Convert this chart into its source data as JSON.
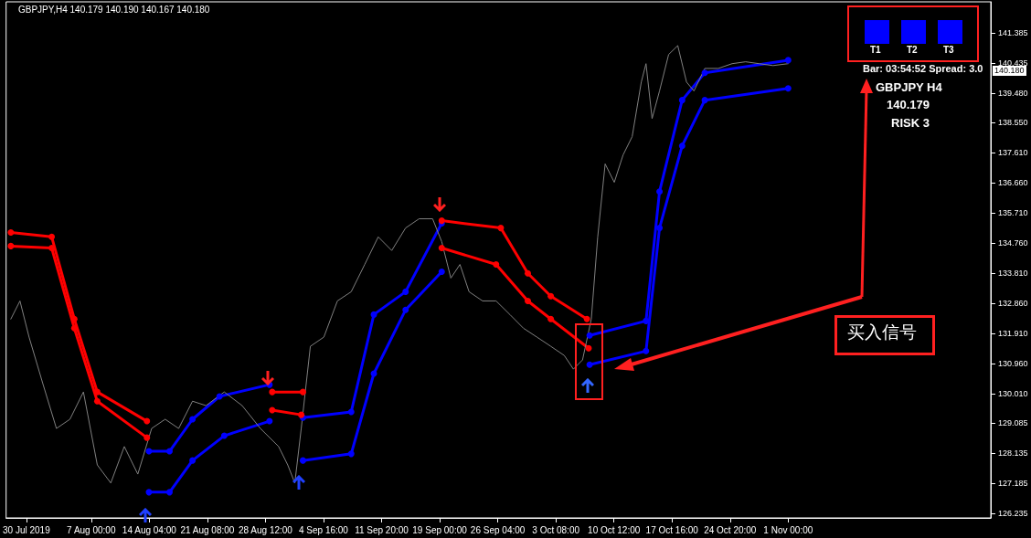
{
  "chart_data": {
    "type": "line",
    "marker": "circle",
    "line_style": "solid",
    "grid": false,
    "annotations": [
      "GBPJPY,H4 140.179 140.190 140.167 140.180",
      "Bar: 03:54:52 Spread: 3.0",
      "GBPJPY H4",
      "140.179",
      "RISK 3",
      "T1",
      "T2",
      "T3",
      "买入信号",
      "140.180"
    ],
    "xlim": [
      "2019-07-27T12:00",
      "2019-11-26T00:00"
    ],
    "xticks": [
      {
        "value": "2019-07-30T00:00",
        "label": "30 Jul 2019"
      },
      {
        "value": "2019-08-07T00:00",
        "label": "7 Aug 00:00"
      },
      {
        "value": "2019-08-14T04:00",
        "label": "14 Aug 04:00"
      },
      {
        "value": "2019-08-21T08:00",
        "label": "21 Aug 08:00"
      },
      {
        "value": "2019-08-28T12:00",
        "label": "28 Aug 12:00"
      },
      {
        "value": "2019-09-04T16:00",
        "label": "4 Sep 16:00"
      },
      {
        "value": "2019-09-11T20:00",
        "label": "11 Sep 20:00"
      },
      {
        "value": "2019-09-19T00:00",
        "label": "19 Sep 00:00"
      },
      {
        "value": "2019-09-26T04:00",
        "label": "26 Sep 04:00"
      },
      {
        "value": "2019-10-03T08:00",
        "label": "3 Oct 08:00"
      },
      {
        "value": "2019-10-10T12:00",
        "label": "10 Oct 12:00"
      },
      {
        "value": "2019-10-17T16:00",
        "label": "17 Oct 16:00"
      },
      {
        "value": "2019-10-24T20:00",
        "label": "24 Oct 20:00"
      },
      {
        "value": "2019-11-01T00:00",
        "label": "1 Nov 00:00"
      }
    ],
    "ylim": [
      126.09,
      142.36
    ],
    "yticks": [
      {
        "value": 126.235,
        "label": "126.235"
      },
      {
        "value": 127.185,
        "label": "127.185"
      },
      {
        "value": 128.135,
        "label": "128.135"
      },
      {
        "value": 129.085,
        "label": "129.085"
      },
      {
        "value": 130.01,
        "label": "130.010"
      },
      {
        "value": 130.96,
        "label": "130.960"
      },
      {
        "value": 131.91,
        "label": "131.910"
      },
      {
        "value": 132.86,
        "label": "132.860"
      },
      {
        "value": 133.81,
        "label": "133.810"
      },
      {
        "value": 134.76,
        "label": "134.760"
      },
      {
        "value": 135.71,
        "label": "135.710"
      },
      {
        "value": 136.66,
        "label": "136.660"
      },
      {
        "value": 137.61,
        "label": "137.610"
      },
      {
        "value": 138.55,
        "label": "138.550"
      },
      {
        "value": 139.48,
        "label": "139.480"
      },
      {
        "value": 140.435,
        "label": "140.435"
      },
      {
        "value": 141.385,
        "label": "141.385"
      }
    ],
    "series": [
      {
        "color": "#808080",
        "marker": "none",
        "x": [
          "2019-07-28T02:00",
          "2019-07-29T05:00",
          "2019-07-30T08:00",
          "2019-08-01T00:00",
          "2019-08-02T17:00",
          "2019-08-04T09:00",
          "2019-08-06T01:00",
          "2019-08-07T18:00",
          "2019-08-09T10:00",
          "2019-08-11T02:00",
          "2019-08-12T18:00",
          "2019-08-14T11:00",
          "2019-08-16T03:00",
          "2019-08-17T19:00",
          "2019-08-19T12:00",
          "2019-08-21T04:00",
          "2019-08-23T10:00",
          "2019-08-25T15:00",
          "2019-08-27T21:00",
          "2019-08-30T03:00",
          "2019-08-31T06:00",
          "2019-09-01T03:00",
          "2019-09-01T22:00",
          "2019-09-03T01:00",
          "2019-09-04T17:00",
          "2019-09-06T09:00",
          "2019-09-08T02:00",
          "2019-09-09T18:00",
          "2019-09-11T10:00",
          "2019-09-13T02:00",
          "2019-09-14T19:00",
          "2019-09-16T11:00",
          "2019-09-18T03:00",
          "2019-09-19T06:00",
          "2019-09-20T09:00",
          "2019-09-21T12:00",
          "2019-09-22T15:00",
          "2019-09-24T07:00",
          "2019-09-25T23:00",
          "2019-09-27T16:00",
          "2019-09-29T08:00",
          "2019-10-01T00:00",
          "2019-10-02T17:00",
          "2019-10-04T09:00",
          "2019-10-05T12:00",
          "2019-10-06T15:00",
          "2019-10-07T17:00",
          "2019-10-08T12:00",
          "2019-10-09T10:00",
          "2019-10-10T13:00",
          "2019-10-11T15:00",
          "2019-10-12T18:00",
          "2019-10-13T21:00",
          "2019-10-14T11:00",
          "2019-10-15T05:00",
          "2019-10-16T03:00",
          "2019-10-17T06:00",
          "2019-10-18T09:00",
          "2019-10-19T11:00",
          "2019-10-20T09:00",
          "2019-10-21T17:00",
          "2019-10-23T09:00",
          "2019-10-25T02:00",
          "2019-10-26T18:00",
          "2019-10-28T10:00",
          "2019-10-30T03:00",
          "2019-11-01T00:00"
        ],
        "values": [
          132.36,
          132.93,
          131.79,
          130.35,
          128.91,
          129.2,
          130.06,
          127.76,
          127.19,
          128.34,
          127.47,
          128.91,
          129.2,
          128.91,
          129.77,
          129.63,
          130.06,
          129.63,
          128.91,
          128.34,
          127.76,
          127.19,
          128.91,
          131.5,
          131.79,
          132.93,
          133.22,
          134.08,
          134.95,
          134.52,
          135.23,
          135.52,
          135.52,
          134.8,
          133.65,
          134.08,
          133.22,
          132.93,
          132.93,
          132.5,
          132.07,
          131.79,
          131.5,
          131.21,
          130.78,
          131.07,
          132.36,
          134.95,
          137.25,
          136.67,
          137.53,
          138.11,
          139.83,
          140.41,
          138.68,
          139.55,
          140.7,
          140.98,
          139.83,
          139.55,
          140.26,
          140.26,
          140.41,
          140.47,
          140.41,
          140.35,
          140.41
        ]
      },
      {
        "color": "#ff0000",
        "x": [
          "2019-07-28T02:00",
          "2019-08-02T03:00",
          "2019-08-04T22:00",
          "2019-08-07T18:00",
          "2019-08-13T21:00",
          "2019-08-20T00:00",
          "2019-08-29T08:00",
          "2019-09-02T03:00",
          "2019-09-10T00:00",
          "2019-09-19T06:00",
          "2019-09-26T13:00",
          "2019-09-29T21:00",
          "2019-10-02T17:00",
          "2019-10-07T04:00"
        ],
        "values": [
          135.09,
          134.95,
          132.36,
          130.06,
          129.14,
          null,
          130.06,
          130.06,
          null,
          135.46,
          135.23,
          133.8,
          133.08,
          132.36
        ]
      },
      {
        "color": "#ff0000",
        "x": [
          "2019-07-28T02:00",
          "2019-08-02T03:00",
          "2019-08-04T22:00",
          "2019-08-07T18:00",
          "2019-08-13T21:00",
          "2019-08-20T00:00",
          "2019-08-29T08:00",
          "2019-09-01T22:00",
          "2019-09-10T00:00",
          "2019-09-19T06:00",
          "2019-09-25T23:00",
          "2019-09-29T21:00",
          "2019-10-02T17:00",
          "2019-10-07T09:00"
        ],
        "values": [
          134.66,
          134.6,
          132.07,
          129.77,
          128.62,
          null,
          129.49,
          129.34,
          null,
          134.6,
          134.08,
          132.93,
          132.36,
          131.44
        ]
      },
      {
        "color": "#0000ff",
        "x": [
          "2019-08-14T03:00",
          "2019-08-16T16:00",
          "2019-08-19T12:00",
          "2019-08-22T20:00",
          "2019-08-29T00:00",
          "2019-08-31T00:00",
          "2019-09-02T03:00",
          "2019-09-08T02:00",
          "2019-09-10T21:00",
          "2019-09-14T19:00",
          "2019-09-19T06:00",
          "2019-10-01T00:00",
          "2019-10-07T12:00",
          "2019-10-14T11:00",
          "2019-10-16T03:00",
          "2019-10-18T22:00",
          "2019-10-21T17:00",
          "2019-11-01T00:00"
        ],
        "values": [
          128.19,
          128.19,
          129.2,
          129.92,
          130.29,
          null,
          129.25,
          129.43,
          132.5,
          133.22,
          135.38,
          null,
          131.84,
          132.3,
          136.38,
          139.26,
          140.12,
          140.52
        ]
      },
      {
        "color": "#0000ff",
        "x": [
          "2019-08-14T03:00",
          "2019-08-16T16:00",
          "2019-08-19T12:00",
          "2019-08-23T10:00",
          "2019-08-29T00:00",
          "2019-08-31T00:00",
          "2019-09-02T03:00",
          "2019-09-08T02:00",
          "2019-09-10T21:00",
          "2019-09-14T19:00",
          "2019-09-19T06:00",
          "2019-10-01T00:00",
          "2019-10-07T12:00",
          "2019-10-14T11:00",
          "2019-10-16T03:00",
          "2019-10-18T22:00",
          "2019-10-21T17:00",
          "2019-11-01T00:00"
        ],
        "values": [
          126.9,
          126.9,
          127.9,
          128.68,
          129.14,
          null,
          127.9,
          128.11,
          130.64,
          132.65,
          133.85,
          null,
          130.92,
          131.35,
          135.23,
          137.82,
          139.26,
          139.63
        ]
      }
    ]
  }
}
